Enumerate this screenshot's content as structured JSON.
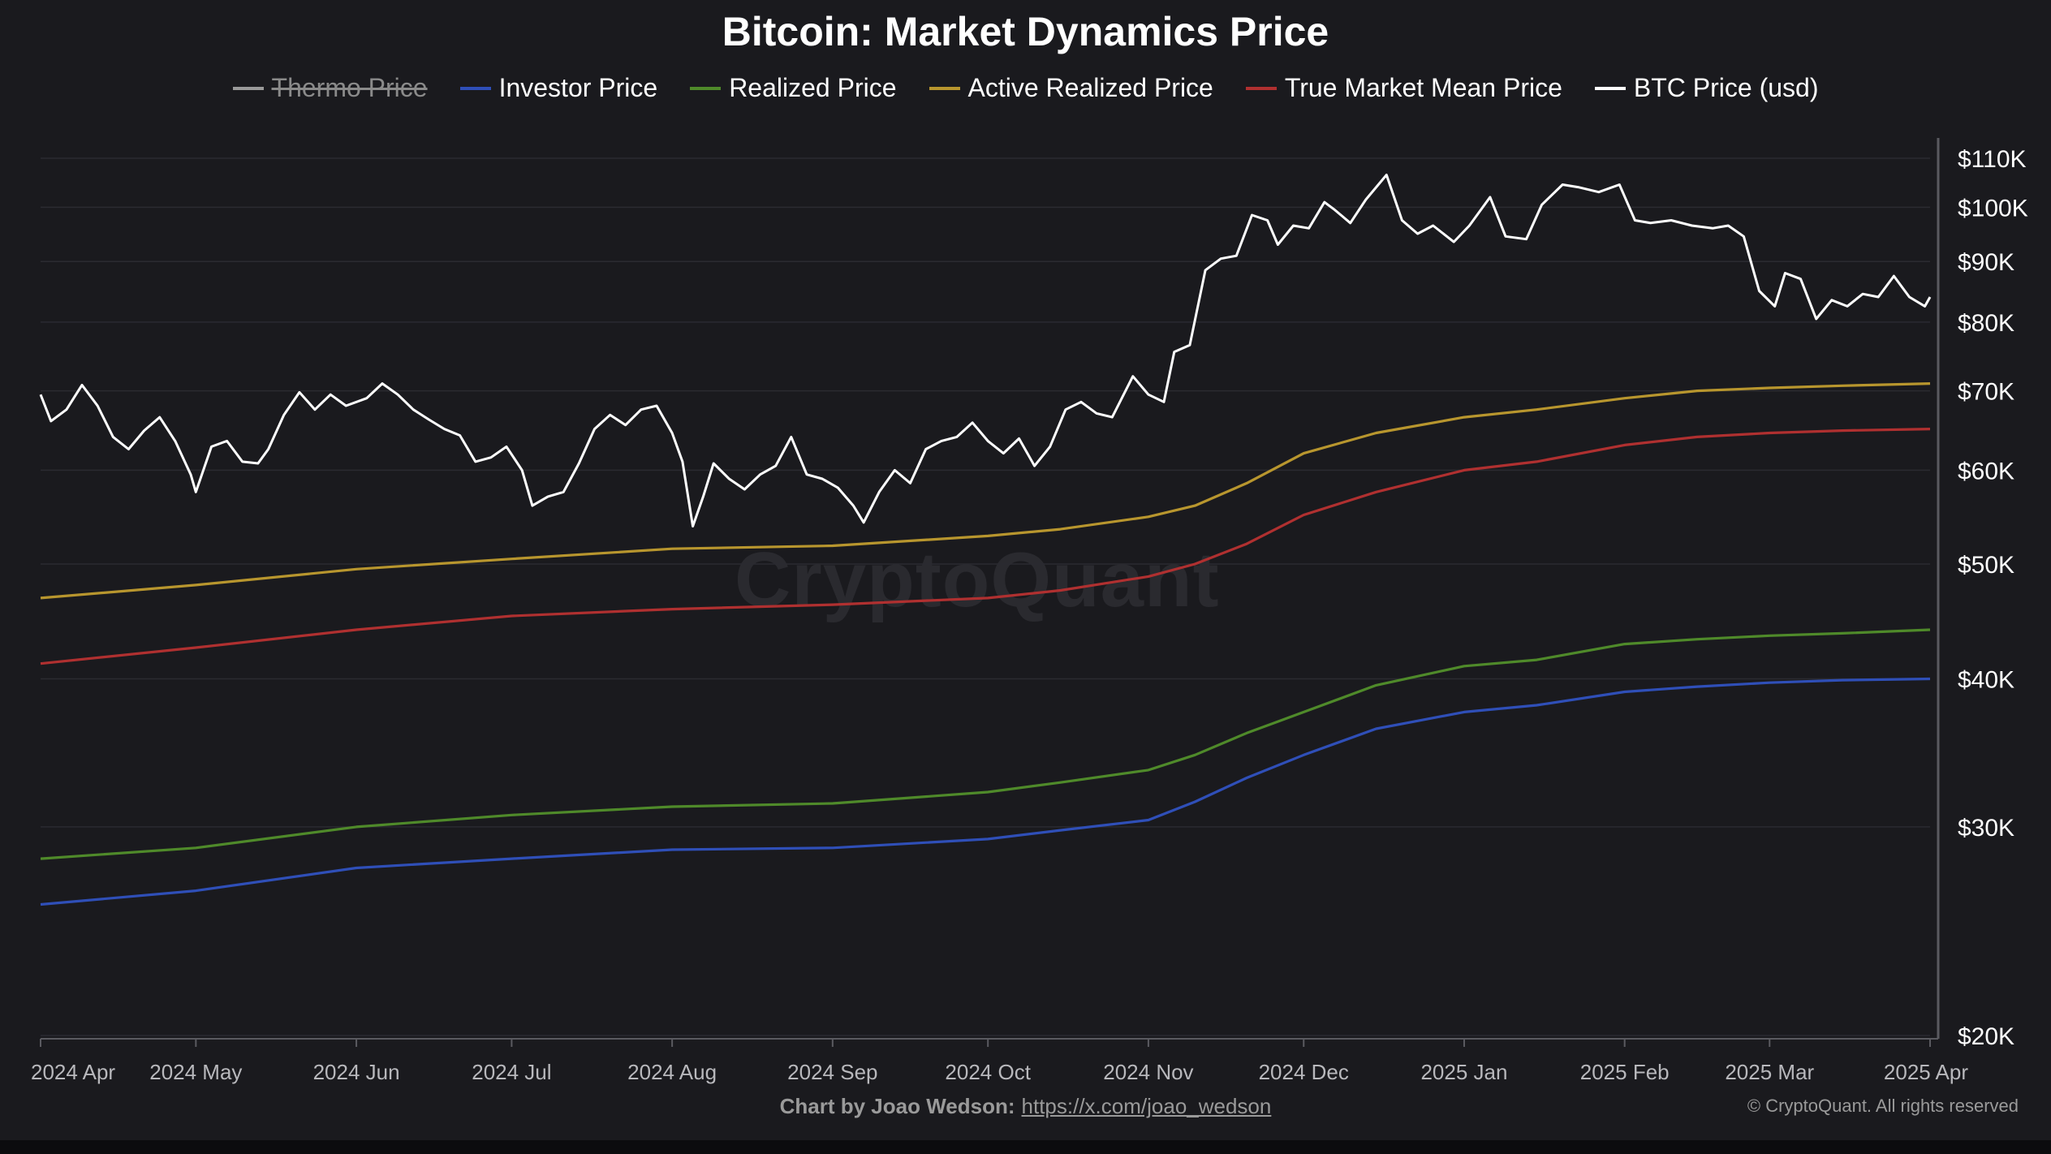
{
  "page": {
    "title": "Bitcoin: Market Dynamics Price",
    "credit_prefix": "Chart by Joao Wedson:",
    "credit_link": "https://x.com/joao_wedson",
    "copyright": "© CryptoQuant. All rights reserved",
    "watermark": "CryptoQuant"
  },
  "legend": [
    {
      "key": "thermo",
      "label": "Thermo Price",
      "color": "#9a9a9a",
      "disabled": true
    },
    {
      "key": "investor",
      "label": "Investor Price",
      "color": "#2f4fb8",
      "disabled": false
    },
    {
      "key": "realized",
      "label": "Realized Price",
      "color": "#4f8a2a",
      "disabled": false
    },
    {
      "key": "active",
      "label": "Active Realized Price",
      "color": "#b8962e",
      "disabled": false
    },
    {
      "key": "tmm",
      "label": "True Market Mean Price",
      "color": "#b03030",
      "disabled": false
    },
    {
      "key": "btc",
      "label": "BTC Price (usd)",
      "color": "#ffffff",
      "disabled": false
    }
  ],
  "chart_data": {
    "type": "line",
    "title": "Bitcoin: Market Dynamics Price",
    "y_scale": "log",
    "ylim": [
      20000,
      110000
    ],
    "xlim": [
      "2024-04-01",
      "2025-04-01"
    ],
    "y_ticks": [
      {
        "value": 20000,
        "label": "$20K"
      },
      {
        "value": 30000,
        "label": "$30K"
      },
      {
        "value": 40000,
        "label": "$40K"
      },
      {
        "value": 50000,
        "label": "$50K"
      },
      {
        "value": 60000,
        "label": "$60K"
      },
      {
        "value": 70000,
        "label": "$70K"
      },
      {
        "value": 80000,
        "label": "$80K"
      },
      {
        "value": 90000,
        "label": "$90K"
      },
      {
        "value": 100000,
        "label": "$100K"
      },
      {
        "value": 110000,
        "label": "$110K"
      }
    ],
    "x_ticks": [
      {
        "date": "2024-04-01",
        "label": "2024 Apr"
      },
      {
        "date": "2024-05-01",
        "label": "2024 May"
      },
      {
        "date": "2024-06-01",
        "label": "2024 Jun"
      },
      {
        "date": "2024-07-01",
        "label": "2024 Jul"
      },
      {
        "date": "2024-08-01",
        "label": "2024 Aug"
      },
      {
        "date": "2024-09-01",
        "label": "2024 Sep"
      },
      {
        "date": "2024-10-01",
        "label": "2024 Oct"
      },
      {
        "date": "2024-11-01",
        "label": "2024 Nov"
      },
      {
        "date": "2024-12-01",
        "label": "2024 Dec"
      },
      {
        "date": "2025-01-01",
        "label": "2025 Jan"
      },
      {
        "date": "2025-02-01",
        "label": "2025 Feb"
      },
      {
        "date": "2025-03-01",
        "label": "2025 Mar"
      },
      {
        "date": "2025-04-01",
        "label": "2025 Apr"
      }
    ],
    "grid": true,
    "series": [
      {
        "name": "BTC Price (usd)",
        "key": "btc",
        "color": "#ffffff",
        "points": [
          [
            "2024-04-01",
            69500
          ],
          [
            "2024-04-03",
            66000
          ],
          [
            "2024-04-06",
            67500
          ],
          [
            "2024-04-09",
            70800
          ],
          [
            "2024-04-12",
            68000
          ],
          [
            "2024-04-15",
            64000
          ],
          [
            "2024-04-18",
            62500
          ],
          [
            "2024-04-21",
            64800
          ],
          [
            "2024-04-24",
            66500
          ],
          [
            "2024-04-27",
            63500
          ],
          [
            "2024-04-30",
            59500
          ],
          [
            "2024-05-01",
            57500
          ],
          [
            "2024-05-04",
            62800
          ],
          [
            "2024-05-07",
            63500
          ],
          [
            "2024-05-10",
            61000
          ],
          [
            "2024-05-13",
            60800
          ],
          [
            "2024-05-15",
            62500
          ],
          [
            "2024-05-18",
            66800
          ],
          [
            "2024-05-21",
            69800
          ],
          [
            "2024-05-24",
            67500
          ],
          [
            "2024-05-27",
            69500
          ],
          [
            "2024-05-30",
            68000
          ],
          [
            "2024-06-03",
            69000
          ],
          [
            "2024-06-06",
            71000
          ],
          [
            "2024-06-09",
            69500
          ],
          [
            "2024-06-12",
            67500
          ],
          [
            "2024-06-15",
            66200
          ],
          [
            "2024-06-18",
            65000
          ],
          [
            "2024-06-21",
            64200
          ],
          [
            "2024-06-24",
            61000
          ],
          [
            "2024-06-27",
            61500
          ],
          [
            "2024-06-30",
            62800
          ],
          [
            "2024-07-03",
            60000
          ],
          [
            "2024-07-05",
            56000
          ],
          [
            "2024-07-08",
            57000
          ],
          [
            "2024-07-11",
            57500
          ],
          [
            "2024-07-14",
            60800
          ],
          [
            "2024-07-17",
            65000
          ],
          [
            "2024-07-20",
            66800
          ],
          [
            "2024-07-23",
            65500
          ],
          [
            "2024-07-26",
            67500
          ],
          [
            "2024-07-29",
            68000
          ],
          [
            "2024-08-01",
            64500
          ],
          [
            "2024-08-03",
            61000
          ],
          [
            "2024-08-05",
            53800
          ],
          [
            "2024-08-07",
            57000
          ],
          [
            "2024-08-09",
            60800
          ],
          [
            "2024-08-12",
            59000
          ],
          [
            "2024-08-15",
            57800
          ],
          [
            "2024-08-18",
            59500
          ],
          [
            "2024-08-21",
            60500
          ],
          [
            "2024-08-24",
            64000
          ],
          [
            "2024-08-27",
            59500
          ],
          [
            "2024-08-30",
            59000
          ],
          [
            "2024-09-02",
            58000
          ],
          [
            "2024-09-05",
            56000
          ],
          [
            "2024-09-07",
            54200
          ],
          [
            "2024-09-10",
            57500
          ],
          [
            "2024-09-13",
            60000
          ],
          [
            "2024-09-16",
            58500
          ],
          [
            "2024-09-19",
            62500
          ],
          [
            "2024-09-22",
            63500
          ],
          [
            "2024-09-25",
            64000
          ],
          [
            "2024-09-28",
            65800
          ],
          [
            "2024-10-01",
            63500
          ],
          [
            "2024-10-04",
            62000
          ],
          [
            "2024-10-07",
            63800
          ],
          [
            "2024-10-10",
            60500
          ],
          [
            "2024-10-13",
            62800
          ],
          [
            "2024-10-16",
            67500
          ],
          [
            "2024-10-19",
            68500
          ],
          [
            "2024-10-22",
            67000
          ],
          [
            "2024-10-25",
            66500
          ],
          [
            "2024-10-29",
            72000
          ],
          [
            "2024-11-01",
            69500
          ],
          [
            "2024-11-04",
            68500
          ],
          [
            "2024-11-06",
            75500
          ],
          [
            "2024-11-09",
            76500
          ],
          [
            "2024-11-12",
            88500
          ],
          [
            "2024-11-15",
            90500
          ],
          [
            "2024-11-18",
            91000
          ],
          [
            "2024-11-21",
            98500
          ],
          [
            "2024-11-24",
            97500
          ],
          [
            "2024-11-26",
            93000
          ],
          [
            "2024-11-29",
            96500
          ],
          [
            "2024-12-02",
            96000
          ],
          [
            "2024-12-05",
            101000
          ],
          [
            "2024-12-07",
            99500
          ],
          [
            "2024-12-10",
            97000
          ],
          [
            "2024-12-13",
            101500
          ],
          [
            "2024-12-17",
            106500
          ],
          [
            "2024-12-20",
            97500
          ],
          [
            "2024-12-23",
            95000
          ],
          [
            "2024-12-26",
            96500
          ],
          [
            "2024-12-30",
            93500
          ],
          [
            "2025-01-02",
            96500
          ],
          [
            "2025-01-06",
            102000
          ],
          [
            "2025-01-09",
            94500
          ],
          [
            "2025-01-13",
            94000
          ],
          [
            "2025-01-16",
            100500
          ],
          [
            "2025-01-20",
            104500
          ],
          [
            "2025-01-23",
            104000
          ],
          [
            "2025-01-27",
            103000
          ],
          [
            "2025-01-31",
            104500
          ],
          [
            "2025-02-03",
            97500
          ],
          [
            "2025-02-06",
            97000
          ],
          [
            "2025-02-10",
            97500
          ],
          [
            "2025-02-14",
            96500
          ],
          [
            "2025-02-18",
            96000
          ],
          [
            "2025-02-21",
            96500
          ],
          [
            "2025-02-24",
            94500
          ],
          [
            "2025-02-27",
            85000
          ],
          [
            "2025-03-02",
            82500
          ],
          [
            "2025-03-04",
            88000
          ],
          [
            "2025-03-07",
            87000
          ],
          [
            "2025-03-10",
            80500
          ],
          [
            "2025-03-13",
            83500
          ],
          [
            "2025-03-16",
            82500
          ],
          [
            "2025-03-19",
            84500
          ],
          [
            "2025-03-22",
            84000
          ],
          [
            "2025-03-25",
            87500
          ],
          [
            "2025-03-28",
            84000
          ],
          [
            "2025-03-31",
            82500
          ],
          [
            "2025-04-01",
            84000
          ]
        ]
      },
      {
        "name": "Active Realized Price",
        "key": "active",
        "color": "#b8962e",
        "points": [
          [
            "2024-04-01",
            46800
          ],
          [
            "2024-05-01",
            48000
          ],
          [
            "2024-06-01",
            49500
          ],
          [
            "2024-07-01",
            50500
          ],
          [
            "2024-08-01",
            51500
          ],
          [
            "2024-09-01",
            51800
          ],
          [
            "2024-10-01",
            52800
          ],
          [
            "2024-10-15",
            53500
          ],
          [
            "2024-11-01",
            54800
          ],
          [
            "2024-11-10",
            56000
          ],
          [
            "2024-11-20",
            58500
          ],
          [
            "2024-12-01",
            62000
          ],
          [
            "2024-12-15",
            64500
          ],
          [
            "2025-01-01",
            66500
          ],
          [
            "2025-01-15",
            67500
          ],
          [
            "2025-02-01",
            69000
          ],
          [
            "2025-02-15",
            70000
          ],
          [
            "2025-03-01",
            70400
          ],
          [
            "2025-03-15",
            70700
          ],
          [
            "2025-04-01",
            71000
          ]
        ]
      },
      {
        "name": "True Market Mean Price",
        "key": "tmm",
        "color": "#b03030",
        "points": [
          [
            "2024-04-01",
            41200
          ],
          [
            "2024-05-01",
            42500
          ],
          [
            "2024-06-01",
            44000
          ],
          [
            "2024-07-01",
            45200
          ],
          [
            "2024-08-01",
            45800
          ],
          [
            "2024-09-01",
            46200
          ],
          [
            "2024-10-01",
            46800
          ],
          [
            "2024-10-15",
            47500
          ],
          [
            "2024-11-01",
            48800
          ],
          [
            "2024-11-10",
            50000
          ],
          [
            "2024-11-20",
            52000
          ],
          [
            "2024-12-01",
            55000
          ],
          [
            "2024-12-15",
            57500
          ],
          [
            "2025-01-01",
            60000
          ],
          [
            "2025-01-15",
            61000
          ],
          [
            "2025-02-01",
            63000
          ],
          [
            "2025-02-15",
            64000
          ],
          [
            "2025-03-01",
            64500
          ],
          [
            "2025-03-15",
            64800
          ],
          [
            "2025-04-01",
            65000
          ]
        ]
      },
      {
        "name": "Realized Price",
        "key": "realized",
        "color": "#4f8a2a",
        "points": [
          [
            "2024-04-01",
            28200
          ],
          [
            "2024-05-01",
            28800
          ],
          [
            "2024-06-01",
            30000
          ],
          [
            "2024-07-01",
            30700
          ],
          [
            "2024-08-01",
            31200
          ],
          [
            "2024-09-01",
            31400
          ],
          [
            "2024-10-01",
            32100
          ],
          [
            "2024-10-15",
            32700
          ],
          [
            "2024-11-01",
            33500
          ],
          [
            "2024-11-10",
            34500
          ],
          [
            "2024-11-20",
            36000
          ],
          [
            "2024-12-01",
            37500
          ],
          [
            "2024-12-15",
            39500
          ],
          [
            "2025-01-01",
            41000
          ],
          [
            "2025-01-15",
            41500
          ],
          [
            "2025-02-01",
            42800
          ],
          [
            "2025-02-15",
            43200
          ],
          [
            "2025-03-01",
            43500
          ],
          [
            "2025-03-15",
            43700
          ],
          [
            "2025-04-01",
            44000
          ]
        ]
      },
      {
        "name": "Investor Price",
        "key": "investor",
        "color": "#2f4fb8",
        "points": [
          [
            "2024-04-01",
            25800
          ],
          [
            "2024-05-01",
            26500
          ],
          [
            "2024-06-01",
            27700
          ],
          [
            "2024-07-01",
            28200
          ],
          [
            "2024-08-01",
            28700
          ],
          [
            "2024-09-01",
            28800
          ],
          [
            "2024-10-01",
            29300
          ],
          [
            "2024-10-15",
            29800
          ],
          [
            "2024-11-01",
            30400
          ],
          [
            "2024-11-10",
            31500
          ],
          [
            "2024-11-20",
            33000
          ],
          [
            "2024-12-01",
            34500
          ],
          [
            "2024-12-15",
            36300
          ],
          [
            "2025-01-01",
            37500
          ],
          [
            "2025-01-15",
            38000
          ],
          [
            "2025-02-01",
            39000
          ],
          [
            "2025-02-15",
            39400
          ],
          [
            "2025-03-01",
            39700
          ],
          [
            "2025-03-15",
            39900
          ],
          [
            "2025-04-01",
            40000
          ]
        ]
      }
    ]
  }
}
